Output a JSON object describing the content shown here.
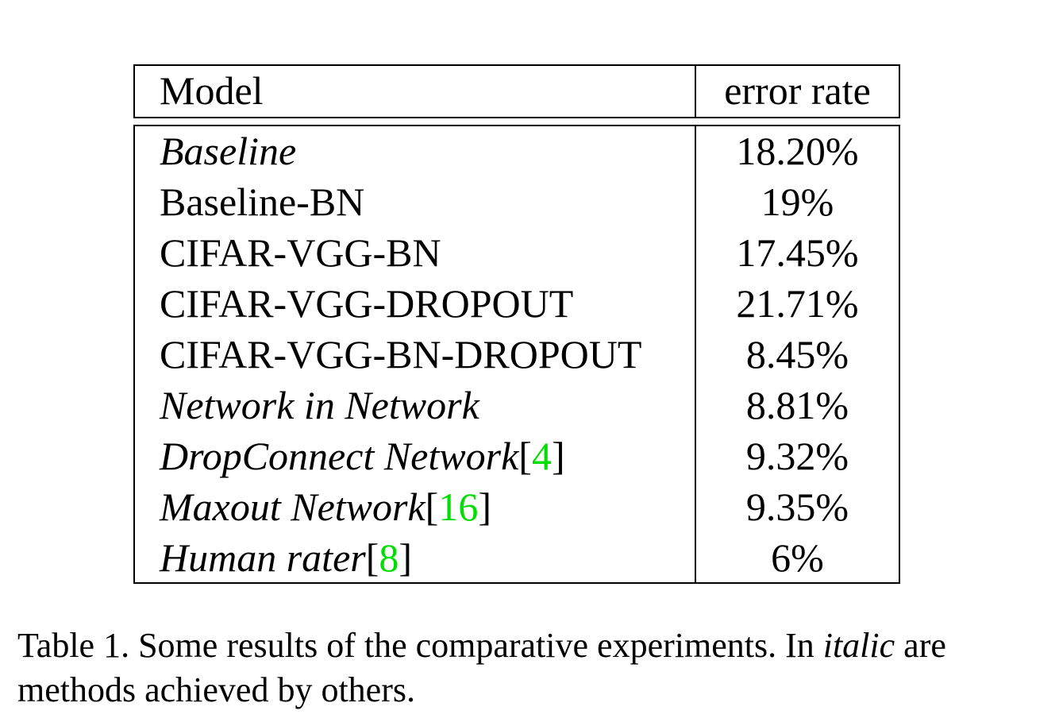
{
  "table": {
    "headers": {
      "model": "Model",
      "error_rate": "error rate"
    },
    "rows": [
      {
        "model": "Baseline",
        "italic": true,
        "cite": "",
        "error": "18.20%"
      },
      {
        "model": "Baseline-BN",
        "italic": false,
        "cite": "",
        "error": "19%"
      },
      {
        "model": "CIFAR-VGG-BN",
        "italic": false,
        "cite": "",
        "error": "17.45%"
      },
      {
        "model": "CIFAR-VGG-DROPOUT",
        "italic": false,
        "cite": "",
        "error": "21.71%"
      },
      {
        "model": "CIFAR-VGG-BN-DROPOUT",
        "italic": false,
        "cite": "",
        "error": "8.45%"
      },
      {
        "model": "Network in Network",
        "italic": true,
        "cite": "",
        "error": "8.81%"
      },
      {
        "model": "DropConnect Network",
        "italic": true,
        "cite": "4",
        "error": "9.32%"
      },
      {
        "model": "Maxout Network",
        "italic": true,
        "cite": "16",
        "error": "9.35%"
      },
      {
        "model": "Human rater",
        "italic": true,
        "cite": "8",
        "error": "6%"
      }
    ],
    "cite_color": "#00dd00"
  },
  "caption": {
    "before_italic": "Table 1. Some results of the comparative experiments. In ",
    "italic_word": "italic",
    "after_italic": " are methods achieved by others."
  }
}
